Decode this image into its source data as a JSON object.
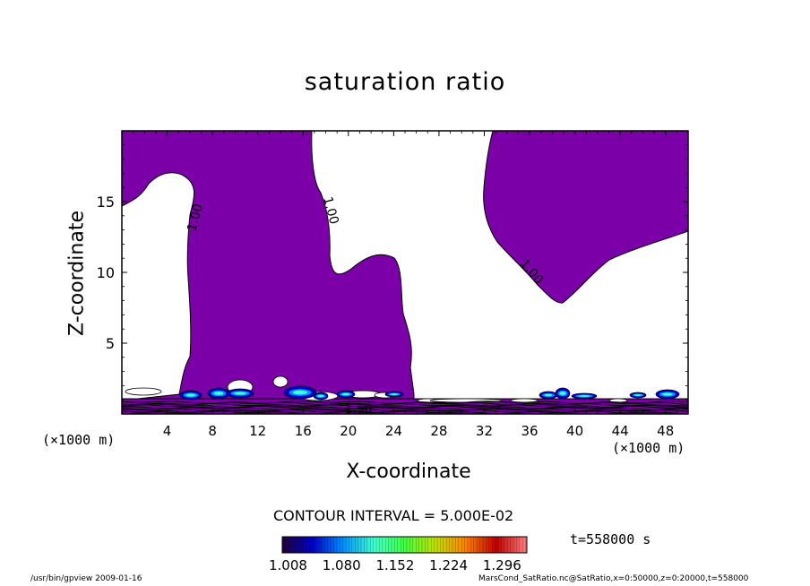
{
  "chart_data": {
    "type": "contour",
    "title": "saturation ratio",
    "xlabel": "X-coordinate",
    "ylabel": "Z-coordinate",
    "x_unit_label": "(×1000 m)",
    "xlim": [
      0,
      50
    ],
    "ylim": [
      0,
      20
    ],
    "xticks": [
      "4",
      "8",
      "12",
      "16",
      "20",
      "24",
      "28",
      "32",
      "36",
      "40",
      "44",
      "48"
    ],
    "yticks": [
      "5",
      "10",
      "15"
    ],
    "contour_interval_label": "CONTOUR INTERVAL = 5.000E-02",
    "contour_labels": [
      "1.00",
      "1.00",
      "1.00",
      "1.50"
    ],
    "colorbar": {
      "ticks": [
        "1.008",
        "1.080",
        "1.152",
        "1.224",
        "1.296"
      ],
      "min": 1.008,
      "max": 1.296
    },
    "time_label": "t=558000 s",
    "fill_color": "#7b00a8",
    "colormap": [
      "#200038",
      "#0000c8",
      "#0090ff",
      "#40ffd0",
      "#40ff40",
      "#c0e000",
      "#ff8000",
      "#c00000",
      "#ff8080"
    ]
  },
  "footer": {
    "left": "/usr/bin/gpview  2009-01-16",
    "right": "MarsCond_SatRatio.nc@SatRatio,x=0:50000,z=0:20000,t=558000"
  }
}
